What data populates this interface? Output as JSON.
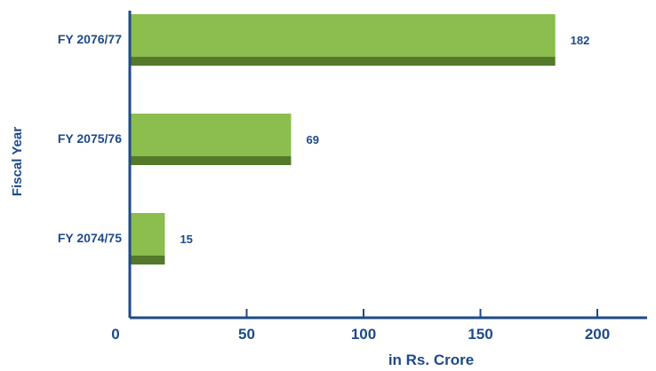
{
  "chart_data": {
    "type": "bar",
    "orientation": "horizontal",
    "categories": [
      "FY 2076/77",
      "FY 2075/76",
      "FY 2074/75"
    ],
    "values": [
      182,
      69,
      15
    ],
    "data_labels": [
      "182",
      "69",
      "15"
    ],
    "xlabel": "in Rs. Crore",
    "ylabel": "Fiscal Year",
    "xlim": [
      0,
      220
    ],
    "x_ticks": [
      0,
      50,
      100,
      150,
      200
    ],
    "x_tick_labels": [
      "0",
      "50",
      "100",
      "150",
      "200"
    ],
    "grid": false,
    "legend": "none",
    "colors": {
      "bar_face": "#8bbd4f",
      "bar_shadow": "#54792a",
      "text": "#1e4a8a",
      "axis": "#1e4a8a"
    }
  }
}
